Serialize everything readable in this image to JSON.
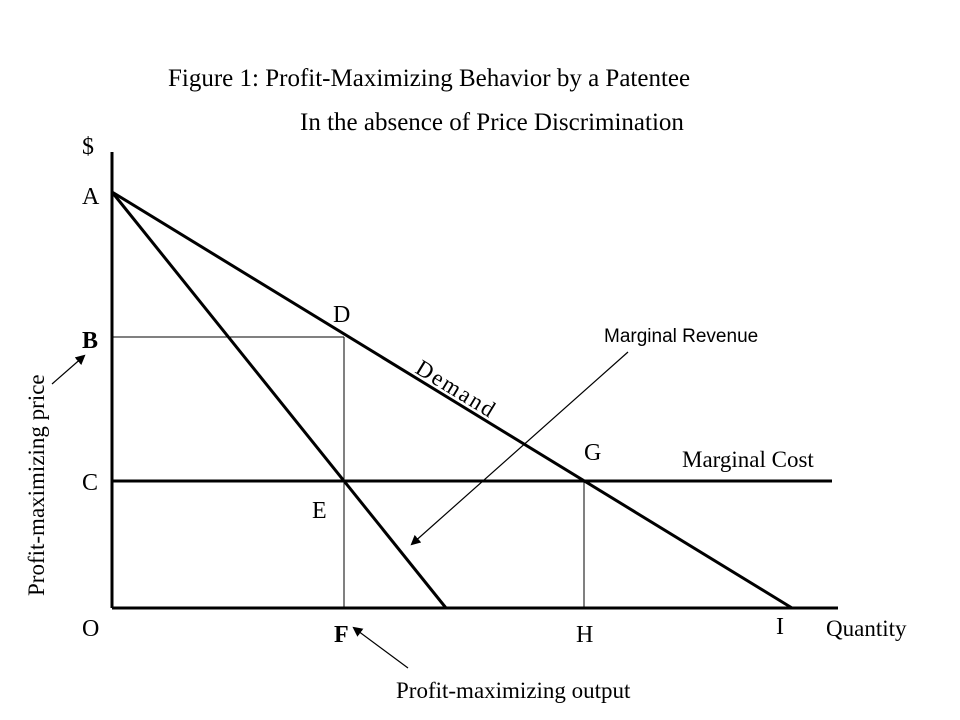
{
  "figure": {
    "title_line1": "Figure 1:  Profit-Maximizing Behavior by a Patentee",
    "title_line2": "In the absence of Price Discrimination",
    "y_axis_label": "$",
    "x_axis_label": "Quantity",
    "points": {
      "A": "A",
      "B": "B",
      "C": "C",
      "O": "O",
      "D": "D",
      "E": "E",
      "F": "F",
      "G": "G",
      "H": "H",
      "I": "I"
    },
    "curve_labels": {
      "demand": "Demand",
      "marginal_revenue": "Marginal Revenue",
      "marginal_cost": "Marginal Cost"
    },
    "annotations": {
      "profit_max_price": "Profit-maximizing price",
      "profit_max_output": "Profit-maximizing output"
    }
  }
}
